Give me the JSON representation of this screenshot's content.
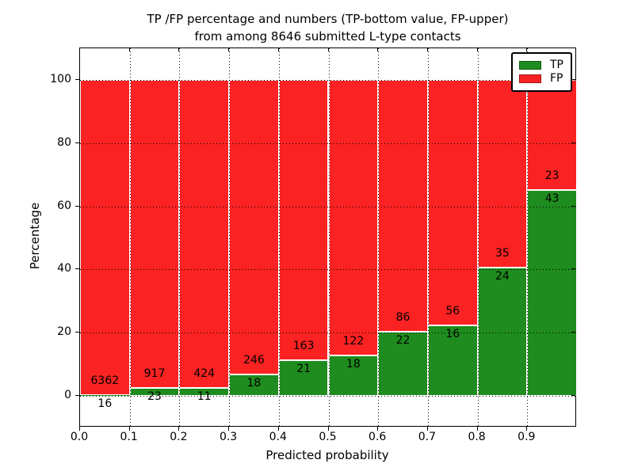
{
  "title": {
    "line1": "TP /FP percentage and numbers (TP-bottom value, FP-upper)",
    "line2": "from among 8646 submitted L-type contacts"
  },
  "chart_data": {
    "type": "bar",
    "subtype": "stacked-percentage-histogram",
    "title": "TP /FP percentage and numbers (TP-bottom value, FP-upper) from among 8646 submitted L-type contacts",
    "xlabel": "Predicted probability",
    "ylabel": "Percentage",
    "xlim": [
      0.0,
      1.0
    ],
    "ylim": [
      -10,
      110
    ],
    "bin_edges": [
      0.0,
      0.1,
      0.2,
      0.3,
      0.4,
      0.5,
      0.6,
      0.7,
      0.8,
      0.9,
      1.0
    ],
    "xtick_labels": [
      "0.0",
      "0.1",
      "0.2",
      "0.3",
      "0.4",
      "0.5",
      "0.6",
      "0.7",
      "0.8",
      "0.9"
    ],
    "ytick_values": [
      0,
      20,
      40,
      60,
      80,
      100
    ],
    "ytick_labels": [
      "0",
      "20",
      "40",
      "60",
      "80",
      "100"
    ],
    "grid": "dotted",
    "bar_edge_color": "#ffffff",
    "series": [
      {
        "name": "TP",
        "color": "#1e8c1e",
        "values": [
          16,
          23,
          11,
          18,
          21,
          18,
          22,
          16,
          24,
          43
        ]
      },
      {
        "name": "FP",
        "color": "#fa2222",
        "values": [
          6362,
          917,
          424,
          246,
          163,
          122,
          86,
          56,
          35,
          23
        ]
      }
    ],
    "legend": {
      "position": "upper right",
      "entries": [
        "TP",
        "FP"
      ]
    }
  }
}
